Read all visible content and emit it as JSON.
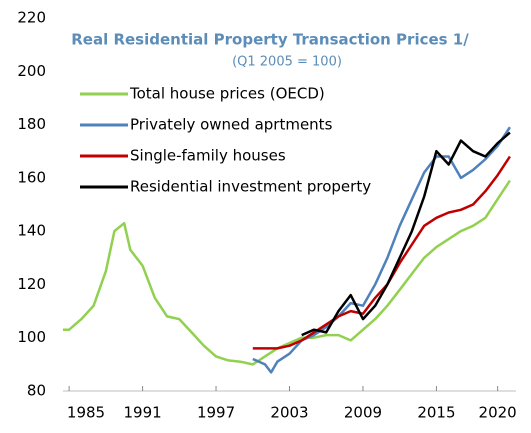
{
  "chart_data": {
    "type": "line",
    "title": "Real Residential Property Transaction Prices 1/",
    "subtitle": "(Q1 2005 = 100)",
    "xlim": [
      1984.5,
      2021.5
    ],
    "xticks": [
      1985,
      1991,
      1997,
      2003,
      2009,
      2015,
      2020
    ],
    "ylim": [
      80,
      220
    ],
    "yticks": [
      80,
      100,
      120,
      140,
      160,
      180,
      200,
      220
    ],
    "grid": false,
    "legend": "upper left",
    "series": [
      {
        "name": "Total house prices (OECD)",
        "color": "#92d050",
        "x": [
          1984.5,
          1985,
          1986,
          1987,
          1988,
          1988.7,
          1989.5,
          1990,
          1991,
          1992,
          1993,
          1994,
          1995,
          1996,
          1997,
          1998,
          1999,
          2000,
          2001,
          2002,
          2003,
          2004,
          2005,
          2006,
          2007,
          2008,
          2009,
          2010,
          2011,
          2012,
          2013,
          2014,
          2015,
          2016,
          2017,
          2018,
          2019,
          2020,
          2021
        ],
        "values": [
          103,
          103,
          107,
          112,
          125,
          140,
          143,
          133,
          127,
          115,
          108,
          107,
          102,
          97,
          93,
          91.5,
          91,
          90,
          93,
          96,
          98,
          100,
          100,
          101,
          101,
          99,
          103,
          107,
          112,
          118,
          124,
          130,
          134,
          137,
          140,
          142,
          145,
          152,
          159
        ]
      },
      {
        "name": "Privately owned aprtments",
        "color": "#4f81bd",
        "x": [
          2000,
          2001,
          2001.5,
          2002,
          2003,
          2004,
          2005,
          2006,
          2007,
          2008,
          2009,
          2010,
          2011,
          2012,
          2013,
          2014,
          2015,
          2016,
          2017,
          2018,
          2019,
          2020,
          2021
        ],
        "values": [
          92,
          90,
          87,
          91,
          94,
          99,
          101,
          104,
          108,
          113,
          112,
          120,
          130,
          142,
          152,
          162,
          168,
          168,
          160,
          163,
          167,
          172,
          179
        ]
      },
      {
        "name": "Single-family houses",
        "color": "#c00000",
        "x": [
          2000,
          2001,
          2002,
          2003,
          2004,
          2005,
          2006,
          2007,
          2008,
          2009,
          2010,
          2011,
          2012,
          2013,
          2014,
          2015,
          2016,
          2017,
          2018,
          2019,
          2020,
          2021
        ],
        "values": [
          96,
          96,
          96,
          97,
          99,
          102,
          105,
          108,
          110,
          109,
          115,
          120,
          128,
          135,
          142,
          145,
          147,
          148,
          150,
          155,
          161,
          168
        ]
      },
      {
        "name": "Residential investment property",
        "color": "#000000",
        "x": [
          2004,
          2005,
          2006,
          2007,
          2008,
          2009,
          2010,
          2011,
          2012,
          2013,
          2014,
          2015,
          2016,
          2017,
          2018,
          2019,
          2020,
          2021
        ],
        "values": [
          101,
          103,
          102,
          110,
          116,
          107,
          112,
          120,
          130,
          140,
          153,
          170,
          165,
          174,
          170,
          168,
          173,
          177
        ]
      }
    ]
  }
}
